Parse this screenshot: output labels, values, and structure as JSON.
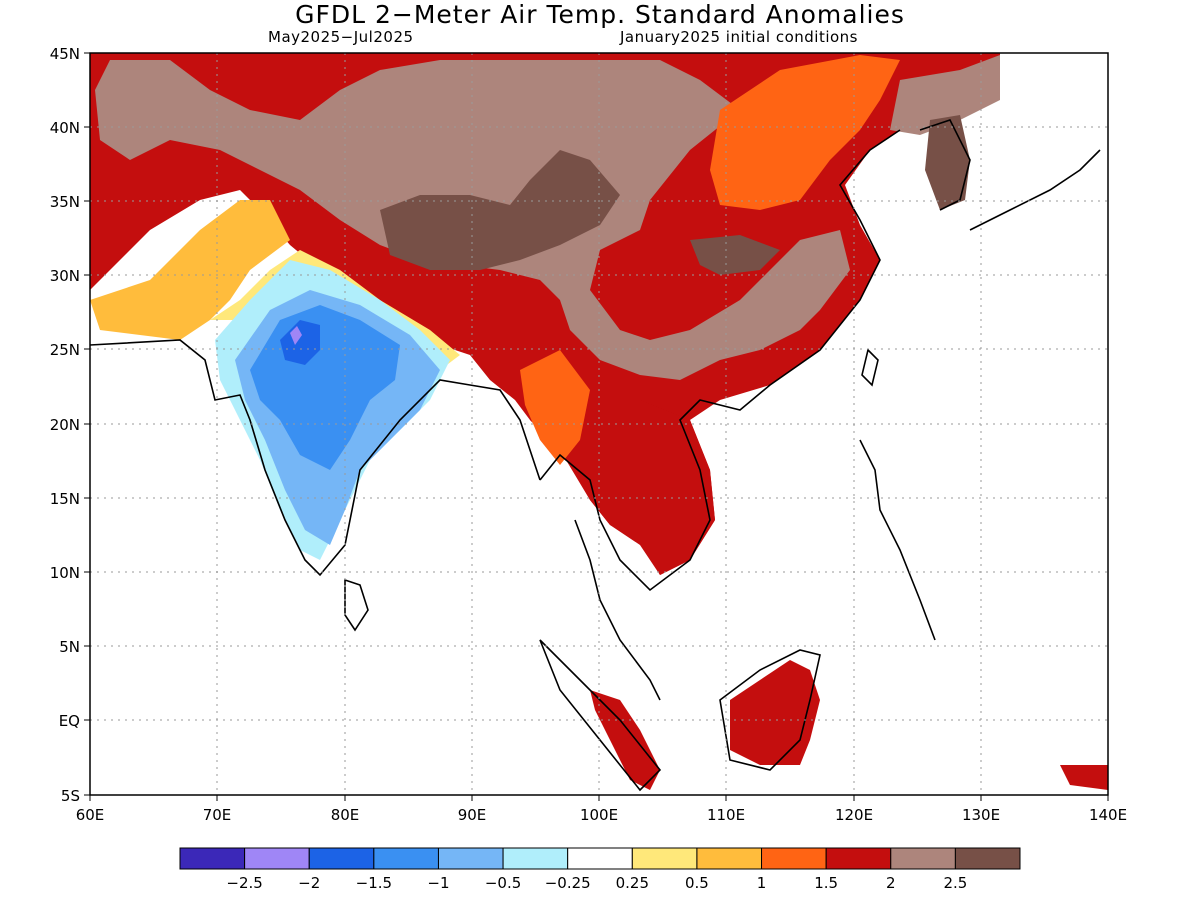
{
  "title": "GFDL 2−Meter Air Temp. Standard Anomalies",
  "subtitle_left": "May2025−Jul2025",
  "subtitle_right": "January2025 initial conditions",
  "lat_labels": [
    "45N",
    "40N",
    "35N",
    "30N",
    "25N",
    "20N",
    "15N",
    "10N",
    "5N",
    "EQ",
    "5S"
  ],
  "lon_labels": [
    "60E",
    "70E",
    "80E",
    "90E",
    "100E",
    "110E",
    "120E",
    "130E",
    "140E"
  ],
  "colorbar": {
    "colors": [
      "#3b28b8",
      "#9f86f6",
      "#1c63e6",
      "#3a90f2",
      "#75b6f6",
      "#b0eefb",
      "#ffffff",
      "#ffe87a",
      "#ffbc3c",
      "#ff6414",
      "#c40e0e",
      "#ad857c",
      "#775047"
    ],
    "labels": [
      "−2.5",
      "−2",
      "−1.5",
      "−1",
      "−0.5",
      "−0.25",
      "0.25",
      "0.5",
      "1",
      "1.5",
      "2",
      "2.5"
    ]
  }
}
